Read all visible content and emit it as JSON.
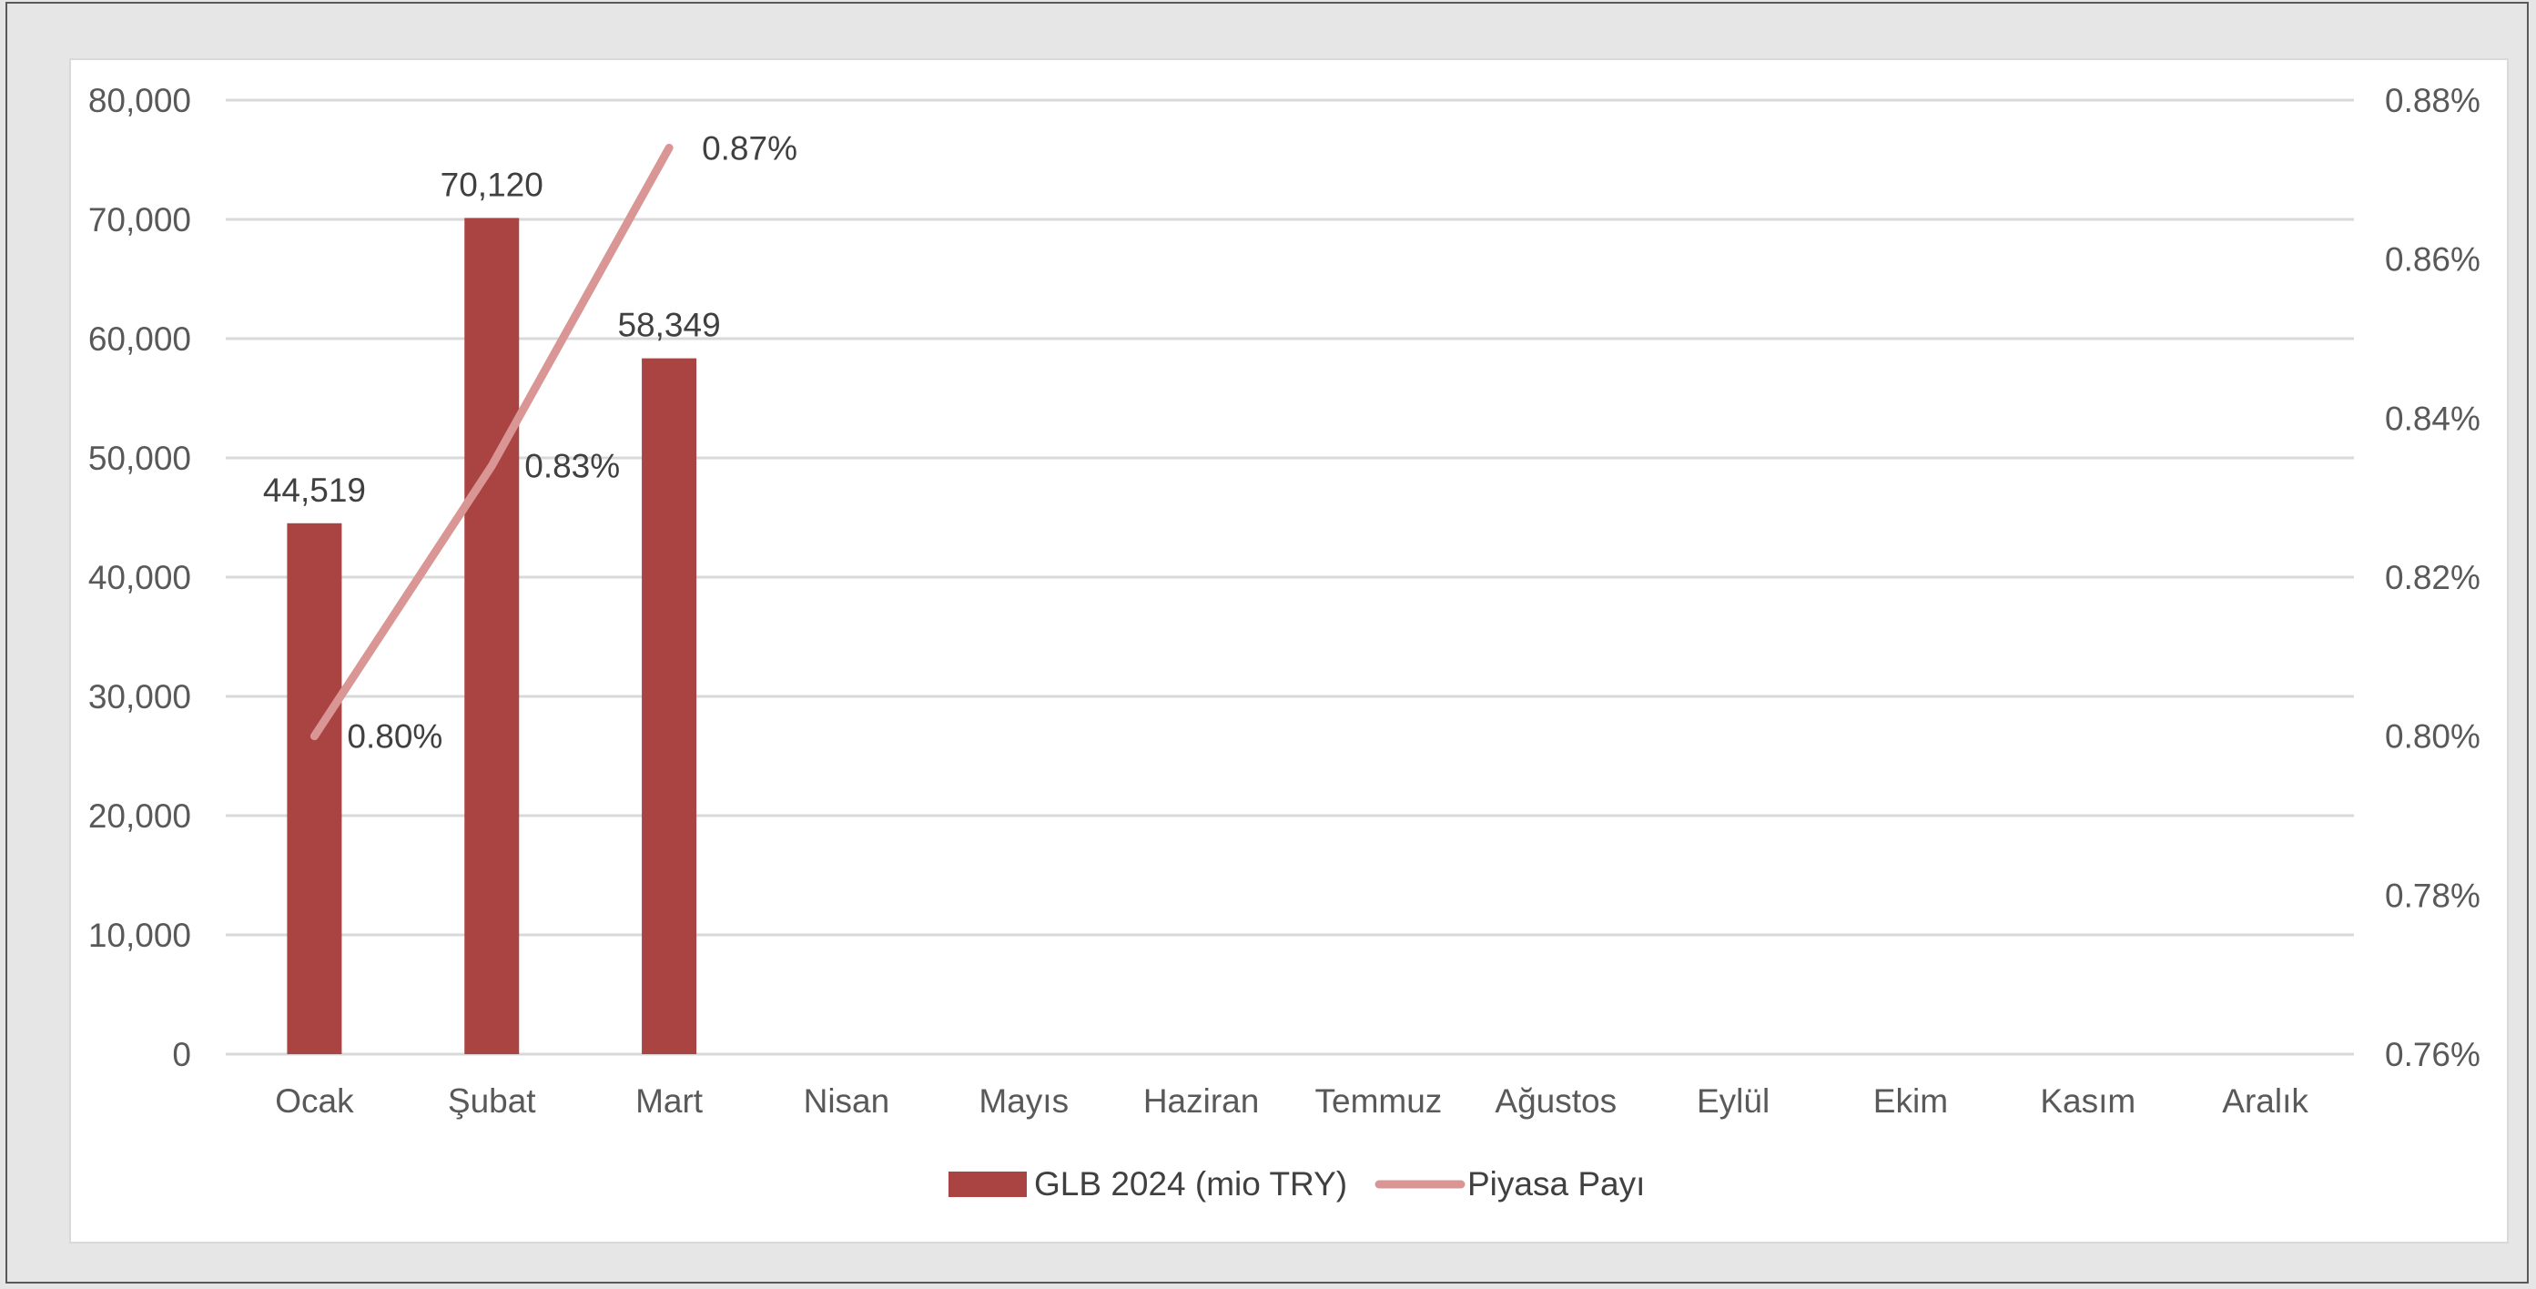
{
  "chart_data": {
    "type": "bar",
    "categories": [
      "Ocak",
      "Şubat",
      "Mart",
      "Nisan",
      "Mayıs",
      "Haziran",
      "Temmuz",
      "Ağustos",
      "Eylül",
      "Ekim",
      "Kasım",
      "Aralık"
    ],
    "series": [
      {
        "name": "GLB 2024 (mio TRY)",
        "type": "bar",
        "axis": "left",
        "color": "#a94442",
        "values": [
          44519,
          70120,
          58349,
          null,
          null,
          null,
          null,
          null,
          null,
          null,
          null,
          null
        ],
        "labels": [
          "44,519",
          "70,120",
          "58,349"
        ]
      },
      {
        "name": "Piyasa Payı",
        "type": "line",
        "axis": "right",
        "color": "#d99694",
        "values": [
          0.8,
          0.834,
          0.874,
          null,
          null,
          null,
          null,
          null,
          null,
          null,
          null,
          null
        ],
        "labels": [
          "0.80%",
          "0.83%",
          "0.87%"
        ]
      }
    ],
    "left_axis": {
      "ylim": [
        0,
        80000
      ],
      "ticks": [
        0,
        10000,
        20000,
        30000,
        40000,
        50000,
        60000,
        70000,
        80000
      ],
      "tick_labels": [
        "0",
        "10,000",
        "20,000",
        "30,000",
        "40,000",
        "50,000",
        "60,000",
        "70,000",
        "80,000"
      ]
    },
    "right_axis": {
      "ylim": [
        0.76,
        0.88
      ],
      "ticks": [
        0.76,
        0.78,
        0.8,
        0.82,
        0.84,
        0.86,
        0.88
      ],
      "tick_labels": [
        "0.76%",
        "0.78%",
        "0.80%",
        "0.82%",
        "0.84%",
        "0.86%",
        "0.88%"
      ]
    },
    "grid": true,
    "legend": "bottom",
    "title": "",
    "xlabel": "",
    "ylabel": ""
  }
}
